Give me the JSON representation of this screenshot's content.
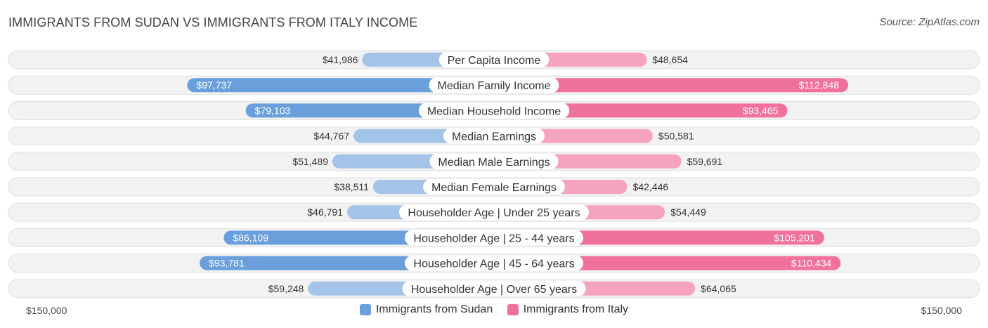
{
  "title": "IMMIGRANTS FROM SUDAN VS IMMIGRANTS FROM ITALY INCOME",
  "source": "Source: ZipAtlas.com",
  "colors": {
    "sudan_light": "#a3c3e8",
    "sudan_dark": "#6a9fdc",
    "italy_light": "#f6a3bd",
    "italy_dark": "#f0719a"
  },
  "chart_data": {
    "type": "bar",
    "orientation": "horizontal-diverging",
    "categories": [
      "Per Capita Income",
      "Median Family Income",
      "Median Household Income",
      "Median Earnings",
      "Median Male Earnings",
      "Median Female Earnings",
      "Householder Age | Under 25 years",
      "Householder Age | 25 - 44 years",
      "Householder Age | 45 - 64 years",
      "Householder Age | Over 65 years"
    ],
    "series": [
      {
        "name": "Immigrants from Sudan",
        "values": [
          41986,
          97737,
          79103,
          44767,
          51489,
          38511,
          46791,
          86109,
          93781,
          59248
        ],
        "labels": [
          "$41,986",
          "$97,737",
          "$79,103",
          "$44,767",
          "$51,489",
          "$38,511",
          "$46,791",
          "$86,109",
          "$93,781",
          "$59,248"
        ]
      },
      {
        "name": "Immigrants from Italy",
        "values": [
          48654,
          112848,
          93465,
          50581,
          59691,
          42446,
          54449,
          105201,
          110434,
          64065
        ],
        "labels": [
          "$48,654",
          "$112,848",
          "$93,465",
          "$50,581",
          "$59,691",
          "$42,446",
          "$54,449",
          "$105,201",
          "$110,434",
          "$64,065"
        ]
      }
    ],
    "axis": {
      "max": 150000,
      "left_label": "$150,000",
      "right_label": "$150,000"
    },
    "legend_position": "bottom-center"
  }
}
